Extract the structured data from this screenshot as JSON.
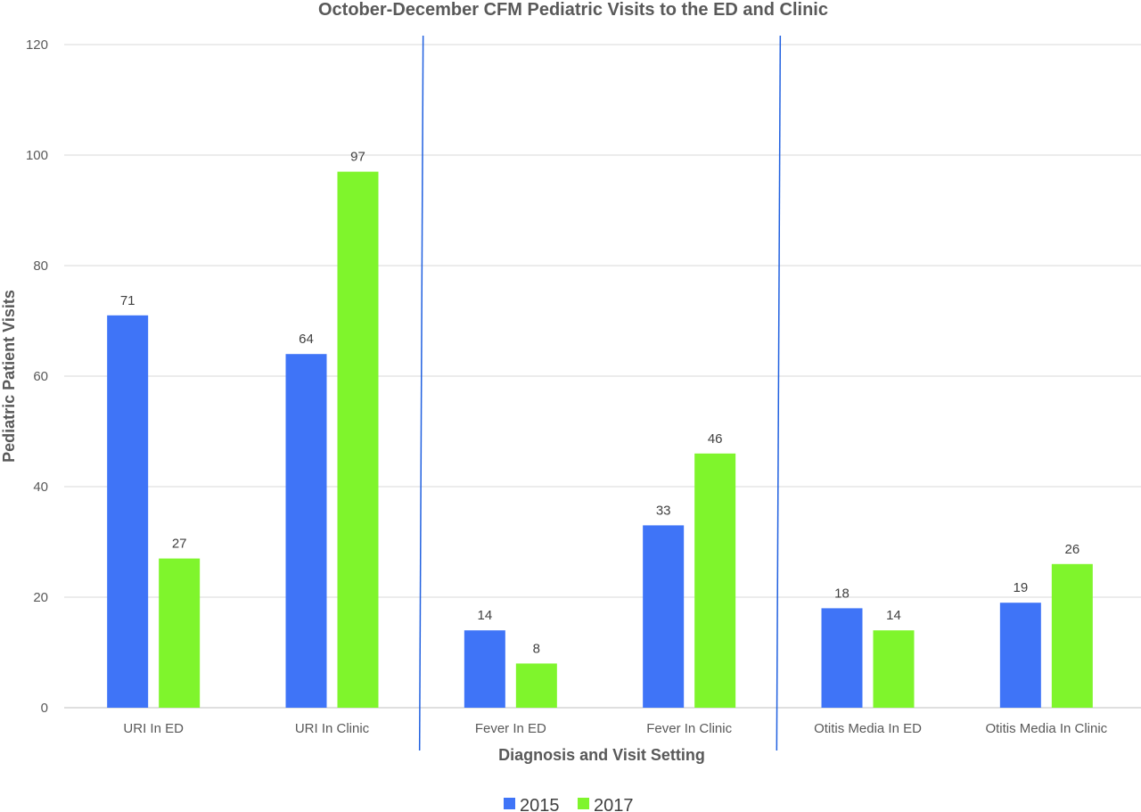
{
  "chart_data": {
    "type": "bar",
    "title": "October-December CFM Pediatric Visits to the ED and Clinic",
    "xlabel": "Diagnosis and Visit Setting",
    "ylabel": "Pediatric Patient Visits",
    "ylim": [
      0,
      120
    ],
    "yticks": [
      0,
      20,
      40,
      60,
      80,
      100,
      120
    ],
    "grid": true,
    "legend_position": "bottom",
    "categories": [
      "URI In ED",
      "URI In Clinic",
      "Fever In ED",
      "Fever In Clinic",
      "Otitis Media In  ED",
      "Otitis Media In Clinic"
    ],
    "series": [
      {
        "name": "2015",
        "color": "#3f74f7",
        "values": [
          71,
          64,
          14,
          33,
          18,
          19
        ]
      },
      {
        "name": "2017",
        "color": "#7ff52c",
        "values": [
          27,
          97,
          8,
          46,
          14,
          26
        ]
      }
    ],
    "separators_after_category": [
      1,
      3
    ],
    "separator_color": "#2060e0"
  }
}
